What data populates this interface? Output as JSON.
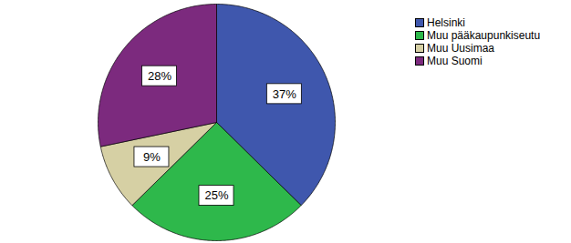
{
  "chart_data": {
    "type": "pie",
    "categories": [
      "Helsinki",
      "Muu pääkaupunkiseutu",
      "Muu Uusimaa",
      "Muu Suomi"
    ],
    "values": [
      37,
      25,
      9,
      28
    ],
    "value_labels": [
      "37%",
      "25%",
      "9%",
      "28%"
    ],
    "colors": [
      "#3f57ad",
      "#2eb84b",
      "#d6d0a4",
      "#7c2a7e"
    ],
    "data_labels": true,
    "legend": "right"
  }
}
